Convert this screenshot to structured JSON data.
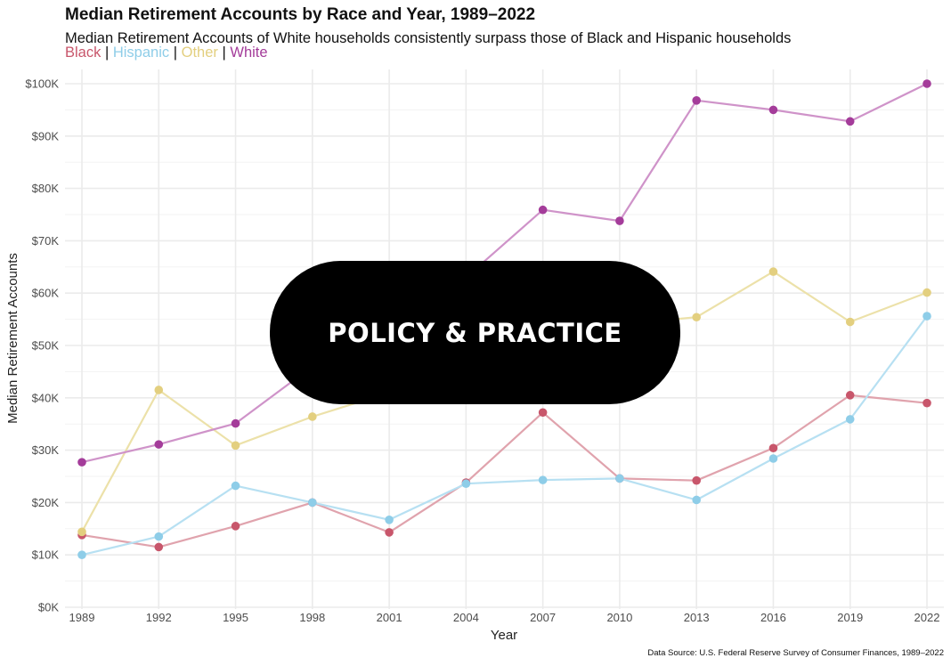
{
  "title": "Median Retirement Accounts by Race and Year, 1989–2022",
  "subtitle": "Median Retirement Accounts of White households consistently surpass those of Black and Hispanic households",
  "legend_separator": "|",
  "badge_text": "POLICY & PRACTICE",
  "source": "Data Source: U.S. Federal Reserve Survey of Consumer Finances, 1989–2022",
  "chart_data": {
    "type": "line",
    "xlabel": "Year",
    "ylabel": "Median Retirement Accounts",
    "categories": [
      "1989",
      "1992",
      "1995",
      "1998",
      "2001",
      "2004",
      "2007",
      "2010",
      "2013",
      "2016",
      "2019",
      "2022"
    ],
    "ylim": [
      0,
      100000
    ],
    "y_ticks": [
      0,
      10000,
      20000,
      30000,
      40000,
      50000,
      60000,
      70000,
      80000,
      90000,
      100000
    ],
    "y_tick_labels": [
      "$0K",
      "$10K",
      "$20K",
      "$30K",
      "$40K",
      "$50K",
      "$60K",
      "$70K",
      "$80K",
      "$90K",
      "$100K"
    ],
    "grid": true,
    "legend_position": "top-left",
    "series": [
      {
        "name": "Black",
        "color": "#c8566b",
        "line_color": "#e0a3ad",
        "values": [
          13800,
          11500,
          15500,
          20000,
          14300,
          23800,
          37200,
          24600,
          24200,
          30400,
          40500,
          39000
        ]
      },
      {
        "name": "Hispanic",
        "color": "#8ecde8",
        "line_color": "#b7e0f2",
        "values": [
          10000,
          13500,
          23200,
          20000,
          16700,
          23600,
          24300,
          24600,
          20500,
          28400,
          35900,
          55600
        ]
      },
      {
        "name": "Other",
        "color": "#e3cf7f",
        "line_color": "#ece1a9",
        "values": [
          14400,
          41500,
          30900,
          36400,
          41000,
          52000,
          55000,
          54000,
          55400,
          64100,
          54500,
          60100
        ]
      },
      {
        "name": "White",
        "color": "#a43c9a",
        "line_color": "#cf93c9",
        "values": [
          27700,
          31100,
          35100,
          46000,
          55000,
          63000,
          75900,
          73800,
          96800,
          95000,
          92800,
          100000
        ]
      }
    ]
  }
}
